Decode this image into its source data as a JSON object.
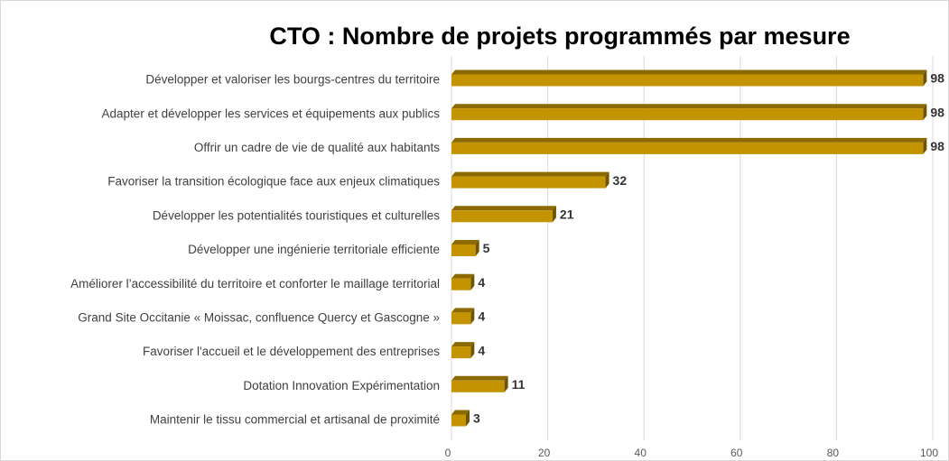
{
  "chart_data": {
    "type": "bar",
    "orientation": "horizontal",
    "title": "CTO : Nombre de projets programmés par mesure",
    "categories": [
      "Développer et valoriser les bourgs-centres du territoire",
      "Adapter et développer les services et équipements aux publics",
      "Offrir un cadre de vie de qualité aux habitants",
      "Favoriser la transition écologique face aux enjeux climatiques",
      "Développer les potentialités touristiques et culturelles",
      "Développer une ingénierie territoriale efficiente",
      "Améliorer l’accessibilité du territoire et conforter le maillage territorial",
      "Grand Site Occitanie « Moissac, confluence Quercy et Gascogne »",
      "Favoriser l'accueil et le développement des entreprises",
      "Dotation Innovation Expérimentation",
      "Maintenir le tissu commercial et artisanal de proximité"
    ],
    "values": [
      98,
      98,
      98,
      32,
      21,
      5,
      4,
      4,
      4,
      11,
      3
    ],
    "color": "#c39400",
    "xlim": [
      0,
      100
    ],
    "xticks": [
      0,
      20,
      40,
      60,
      80,
      100
    ],
    "grid": true
  }
}
